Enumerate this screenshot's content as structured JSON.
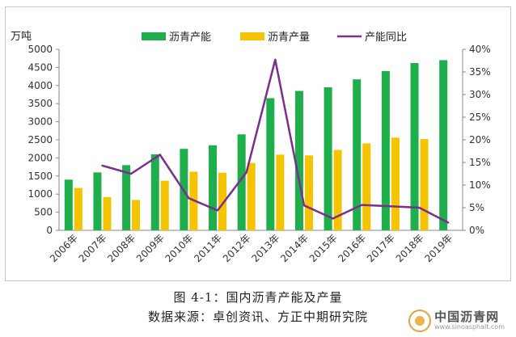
{
  "chart_data": {
    "type": "bar",
    "categories": [
      "2006年",
      "2007年",
      "2008年",
      "2009年",
      "2010年",
      "2011年",
      "2012年",
      "2013年",
      "2014年",
      "2015年",
      "2016年",
      "2017年",
      "2018年",
      "2019年"
    ],
    "series": [
      {
        "name": "沥青产能",
        "kind": "bar",
        "axis": "left",
        "color": "#1eae4c",
        "values": [
          1400,
          1600,
          1800,
          2100,
          2250,
          2350,
          2650,
          3650,
          3850,
          3950,
          4170,
          4400,
          4620,
          4700
        ]
      },
      {
        "name": "沥青产量",
        "kind": "bar",
        "axis": "left",
        "color": "#f5c400",
        "values": [
          1170,
          920,
          840,
          1370,
          1620,
          1590,
          1860,
          2090,
          2070,
          2220,
          2400,
          2560,
          2520,
          null
        ]
      },
      {
        "name": "产能同比",
        "kind": "line",
        "axis": "right",
        "color": "#7a2e8e",
        "values": [
          null,
          14.3,
          12.5,
          16.7,
          7.1,
          4.4,
          12.8,
          37.7,
          5.5,
          2.6,
          5.6,
          5.3,
          5.0,
          1.7
        ]
      }
    ],
    "y_left": {
      "unit_label": "万吨",
      "ylim": [
        0,
        5000
      ],
      "ticks": [
        "0",
        "500",
        "1000",
        "1500",
        "2000",
        "2500",
        "3000",
        "3500",
        "4000",
        "4500",
        "5000"
      ]
    },
    "y_right": {
      "ylim": [
        0,
        40
      ],
      "ticks": [
        "0%",
        "5%",
        "10%",
        "15%",
        "20%",
        "25%",
        "30%",
        "35%",
        "40%"
      ]
    },
    "grid": false,
    "legend_position": "top"
  },
  "caption": {
    "line1": "图 4-1：国内沥青产能及产量",
    "line2": "数据来源：卓创资讯、方正中期研究院"
  },
  "watermark": {
    "name": "中国沥青网",
    "url": "www.sinoasphalt.com"
  }
}
